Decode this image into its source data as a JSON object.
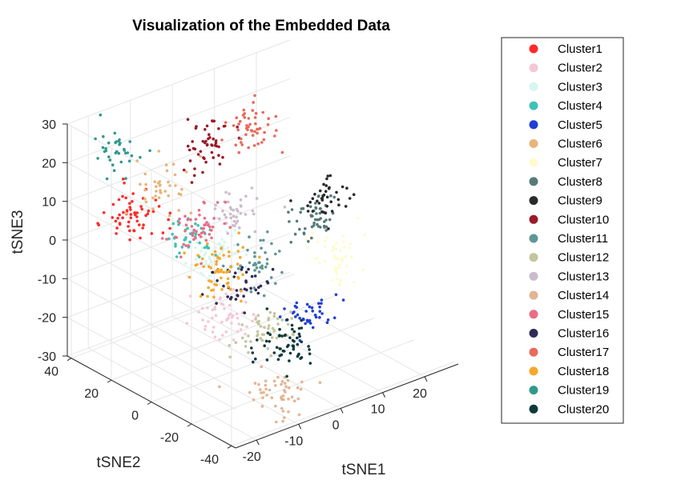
{
  "chart_data": {
    "type": "scatter",
    "dimensions": 3,
    "title": "Visualization of the Embedded Data",
    "xlabel": "tSNE1",
    "ylabel": "tSNE2",
    "zlabel": "tSNE3",
    "xlim": [
      -25,
      28
    ],
    "ylim": [
      -42,
      42
    ],
    "zlim": [
      -30,
      30
    ],
    "xticks": [
      "-20",
      "-10",
      "0",
      "10",
      "20"
    ],
    "yticks": [
      "-40",
      "-20",
      "0",
      "20",
      "40"
    ],
    "zticks": [
      "-30",
      "-20",
      "-10",
      "0",
      "10",
      "20",
      "30"
    ],
    "grid": true,
    "legend_position": "outside-right",
    "point_size": "small",
    "series": [
      {
        "name": "Cluster1",
        "color": "#ff2a2a",
        "center": [
          -20,
          20,
          10
        ],
        "spread": [
          3,
          4,
          3
        ],
        "n": 60
      },
      {
        "name": "Cluster2",
        "color": "#f4c7d6",
        "center": [
          -8,
          -2,
          -14
        ],
        "spread": [
          3,
          4,
          3
        ],
        "n": 50
      },
      {
        "name": "Cluster3",
        "color": "#d7f5f1",
        "center": [
          -6,
          8,
          -2
        ],
        "spread": [
          3,
          4,
          3
        ],
        "n": 60
      },
      {
        "name": "Cluster4",
        "color": "#3ec2b6",
        "center": [
          -10,
          14,
          2
        ],
        "spread": [
          2.5,
          3,
          2.5
        ],
        "n": 40
      },
      {
        "name": "Cluster5",
        "color": "#1f3fd6",
        "center": [
          4,
          -18,
          -14
        ],
        "spread": [
          2.5,
          3,
          2.5
        ],
        "n": 40
      },
      {
        "name": "Cluster6",
        "color": "#e8b47b",
        "center": [
          -18,
          12,
          18
        ],
        "spread": [
          3,
          4,
          3
        ],
        "n": 40
      },
      {
        "name": "Cluster7",
        "color": "#fffbd0",
        "center": [
          12,
          -14,
          -4
        ],
        "spread": [
          3,
          4,
          3
        ],
        "n": 50
      },
      {
        "name": "Cluster8",
        "color": "#567a7a",
        "center": [
          12,
          -4,
          4
        ],
        "spread": [
          2.5,
          3,
          2.5
        ],
        "n": 50
      },
      {
        "name": "Cluster9",
        "color": "#2a2a2a",
        "center": [
          15,
          -2,
          6
        ],
        "spread": [
          2.5,
          3,
          2.5
        ],
        "n": 40
      },
      {
        "name": "Cluster10",
        "color": "#9b1b2a",
        "center": [
          -4,
          18,
          22
        ],
        "spread": [
          3,
          3,
          3
        ],
        "n": 50
      },
      {
        "name": "Cluster11",
        "color": "#5f9696",
        "center": [
          -2,
          -4,
          -2
        ],
        "spread": [
          3,
          3,
          3
        ],
        "n": 40
      },
      {
        "name": "Cluster12",
        "color": "#c3c69e",
        "center": [
          -10,
          -26,
          -10
        ],
        "spread": [
          3,
          4,
          3
        ],
        "n": 50
      },
      {
        "name": "Cluster13",
        "color": "#cbbccb",
        "center": [
          -2,
          6,
          8
        ],
        "spread": [
          3,
          3,
          3
        ],
        "n": 40
      },
      {
        "name": "Cluster14",
        "color": "#e3b492",
        "center": [
          -8,
          -28,
          -26
        ],
        "spread": [
          3,
          4,
          3
        ],
        "n": 50
      },
      {
        "name": "Cluster15",
        "color": "#e86e86",
        "center": [
          -12,
          4,
          8
        ],
        "spread": [
          3,
          3,
          3
        ],
        "n": 50
      },
      {
        "name": "Cluster16",
        "color": "#2f2a54",
        "center": [
          -6,
          -4,
          -6
        ],
        "spread": [
          2.5,
          3,
          2.5
        ],
        "n": 40
      },
      {
        "name": "Cluster17",
        "color": "#e86a5a",
        "center": [
          10,
          22,
          20
        ],
        "spread": [
          3,
          4,
          3
        ],
        "n": 50
      },
      {
        "name": "Cluster18",
        "color": "#f6a82a",
        "center": [
          -16,
          -14,
          4
        ],
        "spread": [
          3,
          4,
          3
        ],
        "n": 60
      },
      {
        "name": "Cluster19",
        "color": "#2f9a8c",
        "center": [
          -24,
          20,
          28
        ],
        "spread": [
          2,
          3,
          3
        ],
        "n": 35
      },
      {
        "name": "Cluster20",
        "color": "#0e3a3a",
        "center": [
          -2,
          -18,
          -20
        ],
        "spread": [
          3,
          4,
          3
        ],
        "n": 60
      }
    ]
  }
}
